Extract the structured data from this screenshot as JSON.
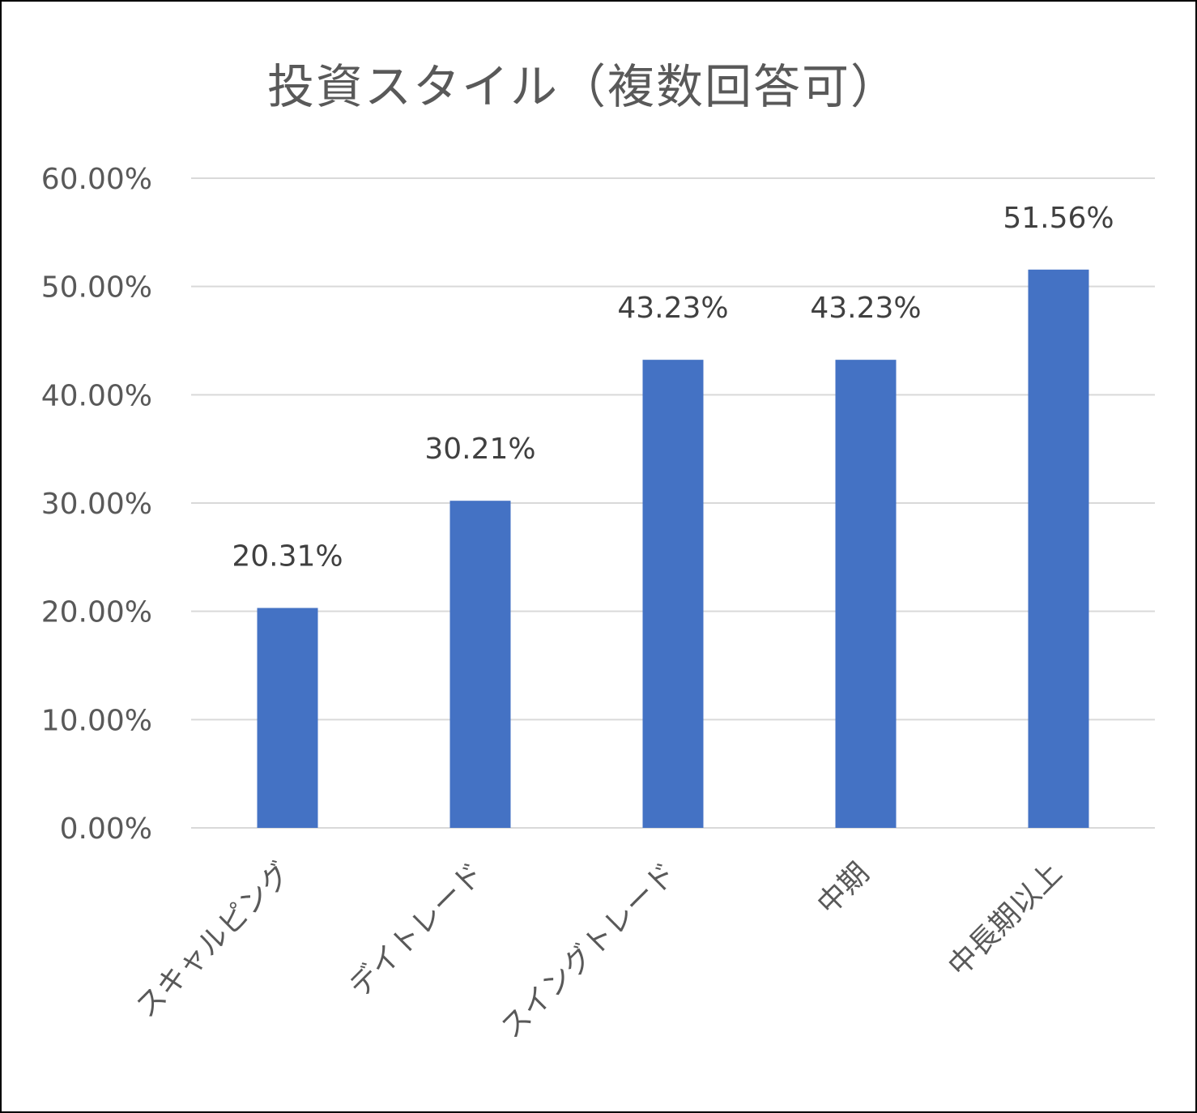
{
  "chart_data": {
    "type": "bar",
    "title": "投資スタイル（複数回答可）",
    "categories": [
      "スキャルピング",
      "デイトレード",
      "スイングトレード",
      "中期",
      "中長期以上"
    ],
    "values": [
      20.31,
      30.21,
      43.23,
      43.23,
      51.56
    ],
    "data_labels": [
      "20.31%",
      "30.21%",
      "43.23%",
      "43.23%",
      "51.56%"
    ],
    "y_ticks": [
      "0.00%",
      "10.00%",
      "20.00%",
      "30.00%",
      "40.00%",
      "50.00%",
      "60.00%"
    ],
    "ylim": [
      0,
      60
    ],
    "grid": true,
    "legend": "none",
    "bar_color": "#4472C4",
    "grid_color": "#D9D9D9"
  }
}
